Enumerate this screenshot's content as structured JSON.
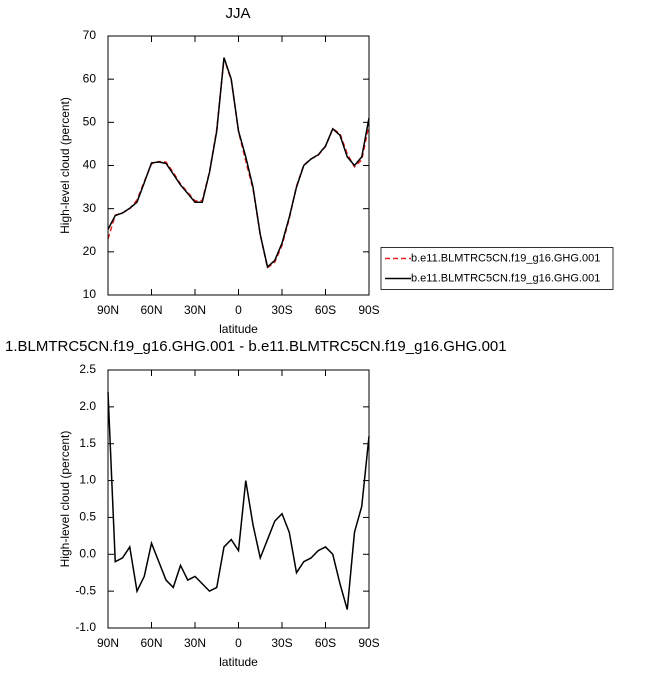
{
  "chart_data": [
    {
      "type": "line",
      "title": "JJA",
      "xlabel": "latitude",
      "ylabel": "High-level cloud (percent)",
      "x": [
        90,
        85,
        80,
        75,
        70,
        65,
        60,
        55,
        50,
        45,
        40,
        35,
        30,
        25,
        20,
        15,
        10,
        5,
        0,
        -5,
        -10,
        -15,
        -20,
        -25,
        -30,
        -35,
        -40,
        -45,
        -50,
        -55,
        -60,
        -65,
        -70,
        -75,
        -80,
        -85,
        -90
      ],
      "xlim": [
        90,
        -90
      ],
      "xticks": [
        {
          "value": 90,
          "label": "90N"
        },
        {
          "value": 60,
          "label": "60N"
        },
        {
          "value": 30,
          "label": "30N"
        },
        0,
        {
          "value": -30,
          "label": "30S"
        },
        {
          "value": -60,
          "label": "60S"
        },
        {
          "value": -90,
          "label": "90S"
        }
      ],
      "ylim": [
        10,
        70
      ],
      "yticks": [
        10,
        20,
        30,
        40,
        50,
        60,
        70
      ],
      "legend": "right",
      "series": [
        {
          "name": "b.e11.BLMTRC5CN.f19_g16.GHG.001",
          "color": "#e8231f",
          "linestyle": "dashed",
          "values": [
            23,
            28.5,
            29,
            30,
            32,
            36.3,
            40.4,
            40.9,
            40.8,
            38.4,
            35.7,
            33.8,
            31.8,
            31.9,
            38.5,
            48.4,
            64.8,
            59.8,
            47.9,
            41,
            34.6,
            24,
            16.3,
            17.6,
            21.5,
            27.7,
            35.2,
            40.1,
            41.5,
            42.4,
            44.4,
            48.5,
            47.4,
            42.7,
            39.7,
            41.3,
            49.4
          ]
        },
        {
          "name": "b.e11.BLMTRC5CN.f19_g16.GHG.001",
          "color": "#000000",
          "linestyle": "solid",
          "values": [
            25.2,
            28.4,
            29,
            30.1,
            31.5,
            36,
            40.6,
            40.8,
            40.5,
            38,
            35.5,
            33.5,
            31.5,
            31.5,
            38.4,
            48,
            65,
            60,
            48,
            42,
            35,
            24,
            16.5,
            18,
            22,
            28,
            35,
            40,
            41.5,
            42.5,
            44.5,
            48.5,
            47,
            42,
            40,
            42,
            51
          ]
        }
      ]
    },
    {
      "type": "line",
      "title": "1.BLMTRC5CN.f19_g16.GHG.001 - b.e11.BLMTRC5CN.f19_g16.GHG.001",
      "xlabel": "latitude",
      "ylabel": "High-level cloud (percent)",
      "x": [
        90,
        85,
        80,
        75,
        70,
        65,
        60,
        55,
        50,
        45,
        40,
        35,
        30,
        25,
        20,
        15,
        10,
        5,
        0,
        -5,
        -10,
        -15,
        -20,
        -25,
        -30,
        -35,
        -40,
        -45,
        -50,
        -55,
        -60,
        -65,
        -70,
        -75,
        -80,
        -85,
        -90
      ],
      "xlim": [
        90,
        -90
      ],
      "xticks": [
        {
          "value": 90,
          "label": "90N"
        },
        {
          "value": 60,
          "label": "60N"
        },
        {
          "value": 30,
          "label": "30N"
        },
        0,
        {
          "value": -30,
          "label": "30S"
        },
        {
          "value": -60,
          "label": "60S"
        },
        {
          "value": -90,
          "label": "90S"
        }
      ],
      "ylim": [
        -1.0,
        2.5
      ],
      "yticks": [
        {
          "value": -1,
          "label": "-1.0"
        },
        -0.5,
        {
          "value": 0,
          "label": "0.0"
        },
        0.5,
        {
          "value": 1,
          "label": "1.0"
        },
        1.5,
        {
          "value": 2,
          "label": "2.0"
        },
        2.5
      ],
      "series": [
        {
          "color": "#000000",
          "linestyle": "solid",
          "values": [
            2.2,
            -0.1,
            -0.05,
            0.1,
            -0.5,
            -0.3,
            0.15,
            -0.1,
            -0.35,
            -0.45,
            -0.15,
            -0.35,
            -0.3,
            -0.4,
            -0.5,
            -0.45,
            0.1,
            0.2,
            0.05,
            1.0,
            0.4,
            -0.05,
            0.2,
            0.45,
            0.55,
            0.3,
            -0.25,
            -0.1,
            -0.05,
            0.05,
            0.1,
            0.0,
            -0.4,
            -0.75,
            0.3,
            0.65,
            1.6
          ]
        }
      ]
    }
  ]
}
